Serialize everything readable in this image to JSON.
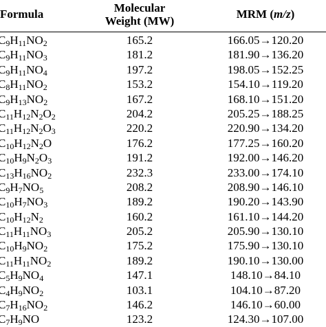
{
  "header": {
    "formula": "Formula",
    "mw_line1": "Molecular",
    "mw_line2": "Weight (MW)",
    "mrm_prefix": "MRM (",
    "mrm_unit": "m/z",
    "mrm_suffix": ")"
  },
  "rows": [
    {
      "formula": [
        [
          "C",
          ""
        ],
        [
          "",
          "9"
        ],
        [
          "H",
          ""
        ],
        [
          "",
          "11"
        ],
        [
          "NO",
          ""
        ],
        [
          "",
          "2"
        ]
      ],
      "mw": "165.2",
      "mrm": "166.05→120.20"
    },
    {
      "formula": [
        [
          "C",
          ""
        ],
        [
          "",
          "9"
        ],
        [
          "H",
          ""
        ],
        [
          "",
          "11"
        ],
        [
          "NO",
          ""
        ],
        [
          "",
          "3"
        ]
      ],
      "mw": "181.2",
      "mrm": "181.90→136.20"
    },
    {
      "formula": [
        [
          "C",
          ""
        ],
        [
          "",
          "9"
        ],
        [
          "H",
          ""
        ],
        [
          "",
          "11"
        ],
        [
          "NO",
          ""
        ],
        [
          "",
          "4"
        ]
      ],
      "mw": "197.2",
      "mrm": "198.05→152.25"
    },
    {
      "formula": [
        [
          "C",
          ""
        ],
        [
          "",
          "8"
        ],
        [
          "H",
          ""
        ],
        [
          "",
          "11"
        ],
        [
          "NO",
          ""
        ],
        [
          "",
          "2"
        ]
      ],
      "mw": "153.2",
      "mrm": "154.10→119.20"
    },
    {
      "formula": [
        [
          "C",
          ""
        ],
        [
          "",
          "9"
        ],
        [
          "H",
          ""
        ],
        [
          "",
          "13"
        ],
        [
          "NO",
          ""
        ],
        [
          "",
          "2"
        ]
      ],
      "mw": "167.2",
      "mrm": "168.10→151.20"
    },
    {
      "formula": [
        [
          "C",
          ""
        ],
        [
          "",
          "11"
        ],
        [
          "H",
          ""
        ],
        [
          "",
          "12"
        ],
        [
          "N",
          ""
        ],
        [
          "",
          "2"
        ],
        [
          "O",
          ""
        ],
        [
          "",
          "2"
        ]
      ],
      "mw": "204.2",
      "mrm": "205.25→188.25"
    },
    {
      "formula": [
        [
          "C",
          ""
        ],
        [
          "",
          "11"
        ],
        [
          "H",
          ""
        ],
        [
          "",
          "12"
        ],
        [
          "N",
          ""
        ],
        [
          "",
          "2"
        ],
        [
          "O",
          ""
        ],
        [
          "",
          "3"
        ]
      ],
      "mw": "220.2",
      "mrm": "220.90→134.20"
    },
    {
      "formula": [
        [
          "C",
          ""
        ],
        [
          "",
          "10"
        ],
        [
          "H",
          ""
        ],
        [
          "",
          "12"
        ],
        [
          "N",
          ""
        ],
        [
          "",
          "2"
        ],
        [
          "O",
          ""
        ]
      ],
      "mw": "176.2",
      "mrm": "177.25→160.20"
    },
    {
      "formula": [
        [
          "C",
          ""
        ],
        [
          "",
          "10"
        ],
        [
          "H",
          ""
        ],
        [
          "",
          "9"
        ],
        [
          "N",
          ""
        ],
        [
          "",
          "2"
        ],
        [
          "O",
          ""
        ],
        [
          "",
          "3"
        ]
      ],
      "mw": "191.2",
      "mrm": "192.00→146.20"
    },
    {
      "formula": [
        [
          "C",
          ""
        ],
        [
          "",
          "13"
        ],
        [
          "H",
          ""
        ],
        [
          "",
          "16"
        ],
        [
          "NO",
          ""
        ],
        [
          "",
          "2"
        ]
      ],
      "mw": "232.3",
      "mrm": "233.00→174.10"
    },
    {
      "formula": [
        [
          "C",
          ""
        ],
        [
          "",
          "9"
        ],
        [
          "H",
          ""
        ],
        [
          "",
          "7"
        ],
        [
          "NO",
          ""
        ],
        [
          "",
          "5"
        ]
      ],
      "mw": "208.2",
      "mrm": "208.90→146.10"
    },
    {
      "formula": [
        [
          "C",
          ""
        ],
        [
          "",
          "10"
        ],
        [
          "H",
          ""
        ],
        [
          "",
          "7"
        ],
        [
          "NO",
          ""
        ],
        [
          "",
          "3"
        ]
      ],
      "mw": "189.2",
      "mrm": "190.20→143.90"
    },
    {
      "formula": [
        [
          "C",
          ""
        ],
        [
          "",
          "10"
        ],
        [
          "H",
          ""
        ],
        [
          "",
          "12"
        ],
        [
          "N",
          ""
        ],
        [
          "",
          "2"
        ]
      ],
      "mw": "160.2",
      "mrm": "161.10→144.20"
    },
    {
      "formula": [
        [
          "C",
          ""
        ],
        [
          "",
          "11"
        ],
        [
          "H",
          ""
        ],
        [
          "",
          "11"
        ],
        [
          "NO",
          ""
        ],
        [
          "",
          "3"
        ]
      ],
      "mw": "205.2",
      "mrm": "205.90→130.10"
    },
    {
      "formula": [
        [
          "C",
          ""
        ],
        [
          "",
          "10"
        ],
        [
          "H",
          ""
        ],
        [
          "",
          "9"
        ],
        [
          "NO",
          ""
        ],
        [
          "",
          "2"
        ]
      ],
      "mw": "175.2",
      "mrm": "175.90→130.10"
    },
    {
      "formula": [
        [
          "C",
          ""
        ],
        [
          "",
          "11"
        ],
        [
          "H",
          ""
        ],
        [
          "",
          "11"
        ],
        [
          "NO",
          ""
        ],
        [
          "",
          "2"
        ]
      ],
      "mw": "189.2",
      "mrm": "190.10→130.00"
    },
    {
      "formula": [
        [
          "C",
          ""
        ],
        [
          "",
          "5"
        ],
        [
          "H",
          ""
        ],
        [
          "",
          "9"
        ],
        [
          "NO",
          ""
        ],
        [
          "",
          "4"
        ]
      ],
      "mw": "147.1",
      "mrm": "148.10→84.10"
    },
    {
      "formula": [
        [
          "C",
          ""
        ],
        [
          "",
          "4"
        ],
        [
          "H",
          ""
        ],
        [
          "",
          "9"
        ],
        [
          "NO",
          ""
        ],
        [
          "",
          "2"
        ]
      ],
      "mw": "103.1",
      "mrm": "104.10→87.20"
    },
    {
      "formula": [
        [
          "C",
          ""
        ],
        [
          "",
          "7"
        ],
        [
          "H",
          ""
        ],
        [
          "",
          "16"
        ],
        [
          "NO",
          ""
        ],
        [
          "",
          "2"
        ]
      ],
      "mw": "146.2",
      "mrm": "146.10→60.00"
    },
    {
      "formula": [
        [
          "C",
          ""
        ],
        [
          "",
          "7"
        ],
        [
          "H",
          ""
        ],
        [
          "",
          "9"
        ],
        [
          "NO",
          ""
        ]
      ],
      "mw": "123.2",
      "mrm": "124.30→107.00"
    }
  ]
}
